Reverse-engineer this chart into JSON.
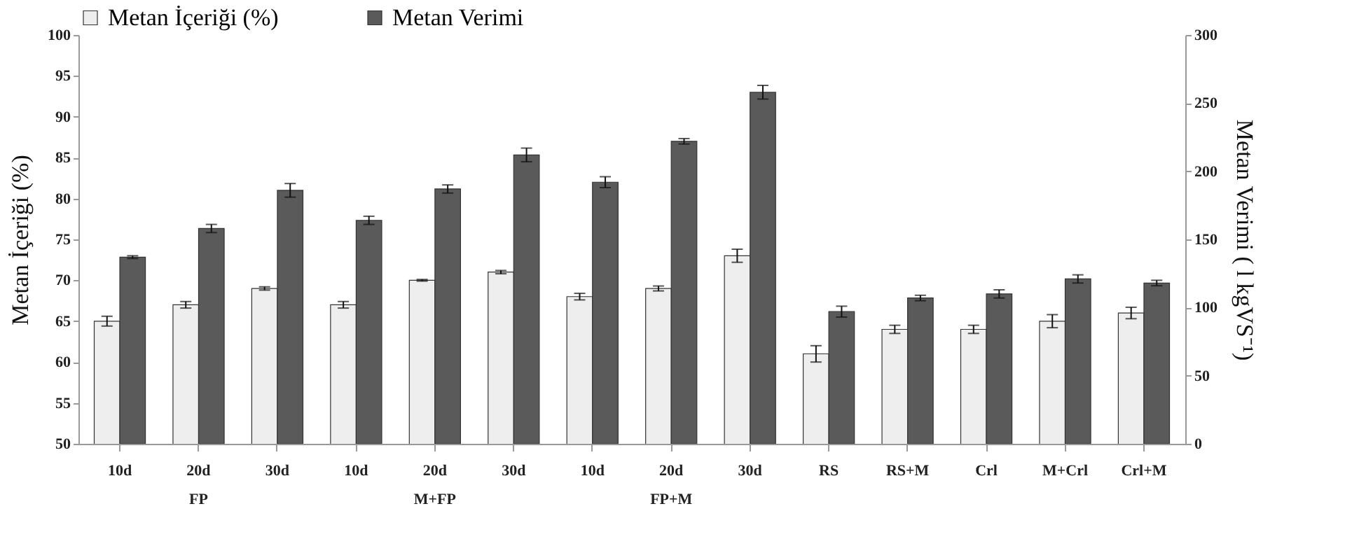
{
  "chart_data": {
    "type": "bar",
    "categories": [
      "10d",
      "20d",
      "30d",
      "10d",
      "20d",
      "30d",
      "10d",
      "20d",
      "30d",
      "RS",
      "RS+M",
      "Crl",
      "M+Crl",
      "Crl+M"
    ],
    "ylabel": "Metan İçeriği (%)",
    "y2label": "Metan Verimi ( l kgVS⁻¹)",
    "annotations": [
      "FP",
      "M+FP",
      "FP+M"
    ],
    "ylim": [
      50,
      100
    ],
    "yticks": [
      50,
      55,
      60,
      65,
      70,
      75,
      80,
      85,
      90,
      95,
      100
    ],
    "y2lim": [
      0,
      300
    ],
    "y2ticks": [
      0,
      50,
      100,
      150,
      200,
      250,
      300
    ],
    "grid": false,
    "legend": "top",
    "series": [
      {
        "name": "Metan İçeriği (%)",
        "color": "#eeeeee",
        "values": [
          65,
          67,
          69,
          67,
          70,
          71,
          68,
          69,
          73,
          61,
          64,
          64,
          65,
          66
        ],
        "errors": [
          0.6,
          0.4,
          0.2,
          0.4,
          0.1,
          0.2,
          0.4,
          0.3,
          0.8,
          1.0,
          0.5,
          0.5,
          0.8,
          0.7
        ]
      },
      {
        "name": "Metan Verimi",
        "color": "#5a5a5a",
        "axis": "y2",
        "values": [
          137,
          158,
          186,
          164,
          187,
          212,
          192,
          222,
          258,
          97,
          107,
          110,
          121,
          118
        ],
        "errors": [
          1,
          3,
          5,
          3,
          3,
          5,
          4,
          2,
          5,
          4,
          2,
          3,
          3,
          2
        ]
      }
    ]
  }
}
